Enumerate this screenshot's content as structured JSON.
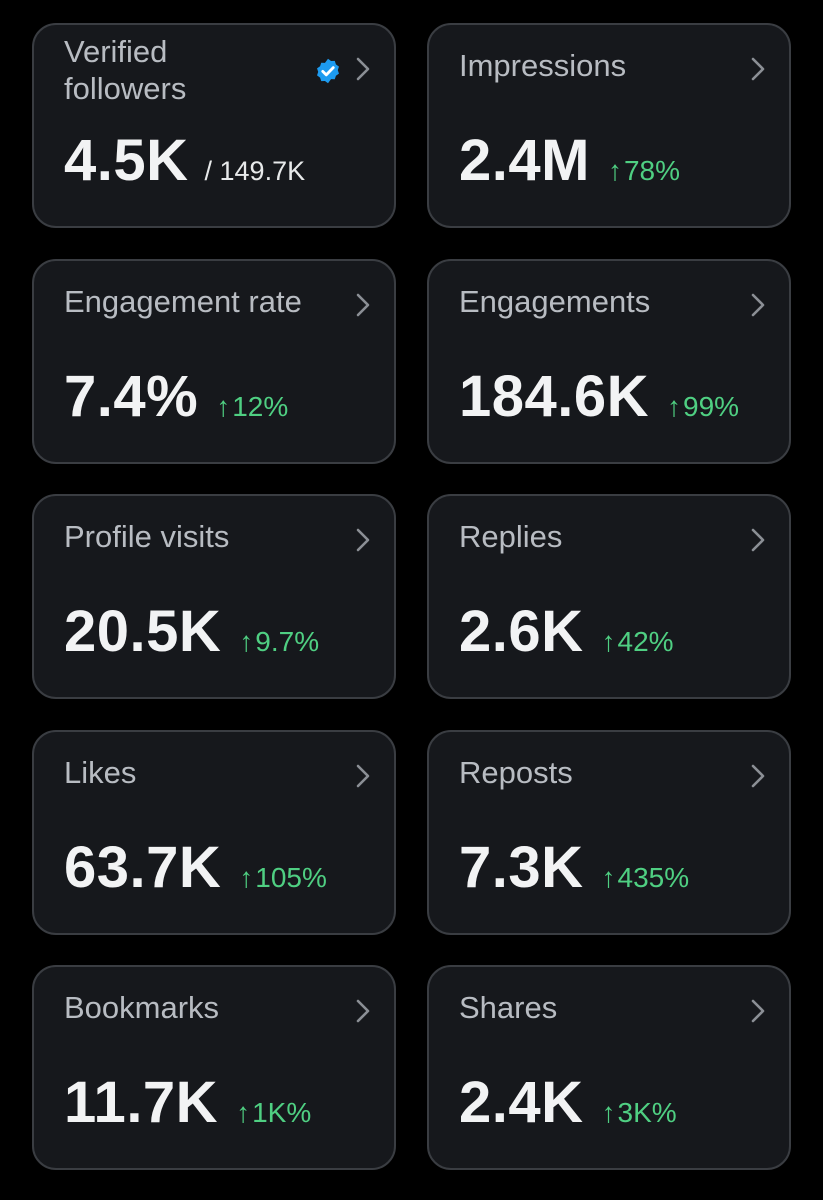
{
  "accent_color": "#4fcf82",
  "verified_color": "#1d9bf0",
  "cards": [
    {
      "label": "Verified followers",
      "value": "4.5K",
      "total": "/ 149.7K",
      "verified": true
    },
    {
      "label": "Impressions",
      "value": "2.4M",
      "change": "78%",
      "arrow": "↑"
    },
    {
      "label": "Engagement rate",
      "value": "7.4%",
      "change": "12%",
      "arrow": "↑"
    },
    {
      "label": "Engagements",
      "value": "184.6K",
      "change": "99%",
      "arrow": "↑"
    },
    {
      "label": "Profile visits",
      "value": "20.5K",
      "change": "9.7%",
      "arrow": "↑"
    },
    {
      "label": "Replies",
      "value": "2.6K",
      "change": "42%",
      "arrow": "↑"
    },
    {
      "label": "Likes",
      "value": "63.7K",
      "change": "105%",
      "arrow": "↑"
    },
    {
      "label": "Reposts",
      "value": "7.3K",
      "change": "435%",
      "arrow": "↑"
    },
    {
      "label": "Bookmarks",
      "value": "11.7K",
      "change": "1K%",
      "arrow": "↑"
    },
    {
      "label": "Shares",
      "value": "2.4K",
      "change": "3K%",
      "arrow": "↑"
    }
  ]
}
